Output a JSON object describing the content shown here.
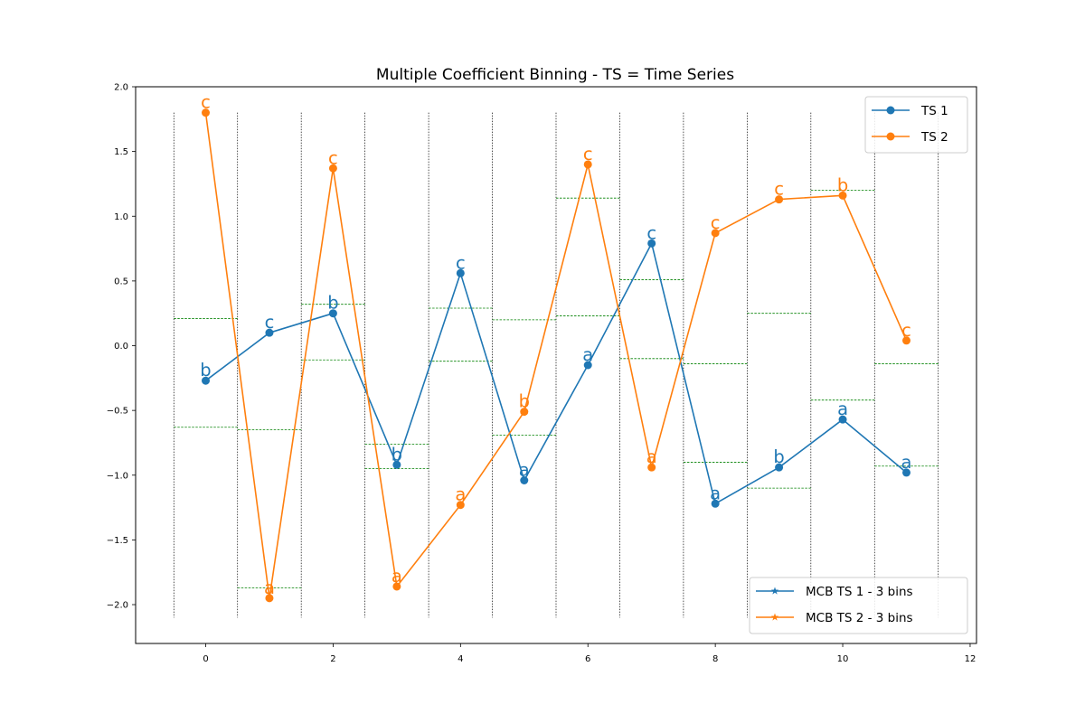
{
  "chart_data": {
    "type": "line",
    "title": "Multiple Coefficient Binning - TS = Time Series",
    "xlabel": "",
    "ylabel": "",
    "xlim": [
      -1.1,
      12.1
    ],
    "ylim": [
      -2.3,
      2.0
    ],
    "xticks": [
      0,
      2,
      4,
      6,
      8,
      10,
      12
    ],
    "xtick_labels": [
      "0",
      "2",
      "4",
      "6",
      "8",
      "10",
      "12"
    ],
    "yticks": [
      -2.0,
      -1.5,
      -1.0,
      -0.5,
      0.0,
      0.5,
      1.0,
      1.5,
      2.0
    ],
    "ytick_labels": [
      "−2.0",
      "−1.5",
      "−1.0",
      "−0.5",
      "0.0",
      "0.5",
      "1.0",
      "1.5",
      "2.0"
    ],
    "grid": false,
    "x": [
      0,
      1,
      2,
      3,
      4,
      5,
      6,
      7,
      8,
      9,
      10,
      11
    ],
    "series": [
      {
        "name": "TS 1",
        "color": "#1f77b4",
        "marker": "circle",
        "values": [
          -0.27,
          0.1,
          0.25,
          -0.92,
          0.56,
          -1.04,
          -0.15,
          0.79,
          -1.22,
          -0.94,
          -0.57,
          -0.98
        ],
        "symbols": [
          "b",
          "c",
          "b",
          "b",
          "c",
          "a",
          "a",
          "c",
          "a",
          "b",
          "a",
          "a"
        ]
      },
      {
        "name": "TS 2",
        "color": "#ff7f0e",
        "marker": "circle",
        "values": [
          1.8,
          -1.95,
          1.37,
          -1.86,
          -1.23,
          -0.51,
          1.4,
          -0.94,
          0.87,
          1.13,
          1.16,
          0.04
        ],
        "symbols": [
          "c",
          "a",
          "c",
          "a",
          "a",
          "b",
          "c",
          "a",
          "c",
          "c",
          "b",
          "c"
        ]
      }
    ],
    "bins": {
      "vertical_line_x": [
        -0.5,
        0.5,
        1.5,
        2.5,
        3.5,
        4.5,
        5.5,
        6.5,
        7.5,
        8.5,
        9.5,
        10.5,
        11.5
      ],
      "vertical_line_ylim": [
        -2.1,
        1.8
      ],
      "vertical_line_color": "#000000",
      "edge_color": "#008000",
      "edges": [
        [
          -0.63,
          0.21
        ],
        [
          -1.87,
          -0.65
        ],
        [
          -0.11,
          0.32
        ],
        [
          -0.95,
          -0.76
        ],
        [
          -0.12,
          0.29
        ],
        [
          -0.69,
          0.2
        ],
        [
          0.23,
          1.14
        ],
        [
          -0.1,
          0.51
        ],
        [
          -0.9,
          -0.14
        ],
        [
          -1.1,
          0.25
        ],
        [
          -0.42,
          1.2
        ],
        [
          -0.93,
          -0.14
        ]
      ]
    },
    "legends": [
      {
        "placement": "top-right",
        "entries": [
          {
            "label": "TS 1",
            "color": "#1f77b4",
            "marker": "circle"
          },
          {
            "label": "TS 2",
            "color": "#ff7f0e",
            "marker": "circle"
          }
        ]
      },
      {
        "placement": "bottom-right",
        "entries": [
          {
            "label": "MCB TS 1 - 3 bins",
            "color": "#1f77b4",
            "marker": "star"
          },
          {
            "label": "MCB TS 2 - 3 bins",
            "color": "#ff7f0e",
            "marker": "star"
          }
        ]
      }
    ]
  }
}
